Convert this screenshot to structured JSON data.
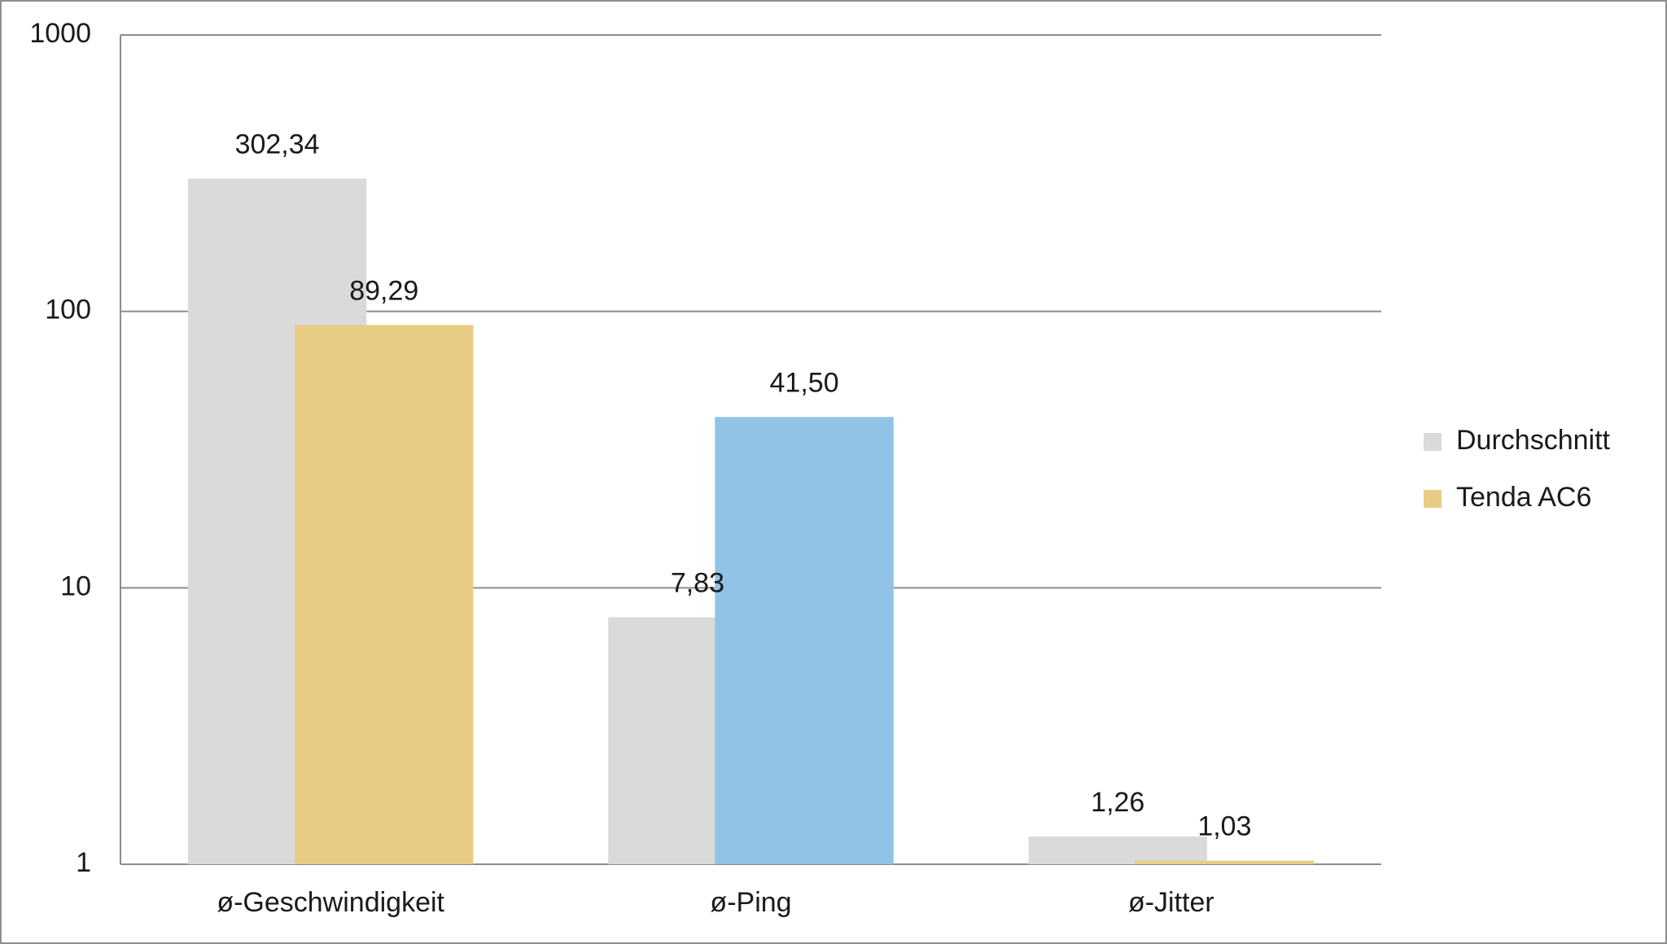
{
  "chart_data": {
    "type": "bar",
    "log_scale": true,
    "grid": true,
    "legend": "right",
    "categories": [
      "ø-Geschwindigkeit",
      "ø-Ping",
      "ø-Jitter"
    ],
    "series": [
      {
        "name": "Durchschnitt",
        "color": "#d9dad9",
        "values": [
          302.34,
          7.83,
          1.26
        ],
        "value_labels": [
          "302,34",
          "7,83",
          "1,26"
        ]
      },
      {
        "name": "Tenda AC6",
        "color": "#e8cc84",
        "colors": [
          "#e8cc84",
          "#90c3e6",
          "#e8cc84"
        ],
        "values": [
          89.29,
          41.5,
          1.03
        ],
        "value_labels": [
          "89,29",
          "41,50",
          "1,03"
        ]
      }
    ],
    "ylim": [
      1,
      1000
    ],
    "yticks": [
      1,
      10,
      100,
      1000
    ]
  }
}
